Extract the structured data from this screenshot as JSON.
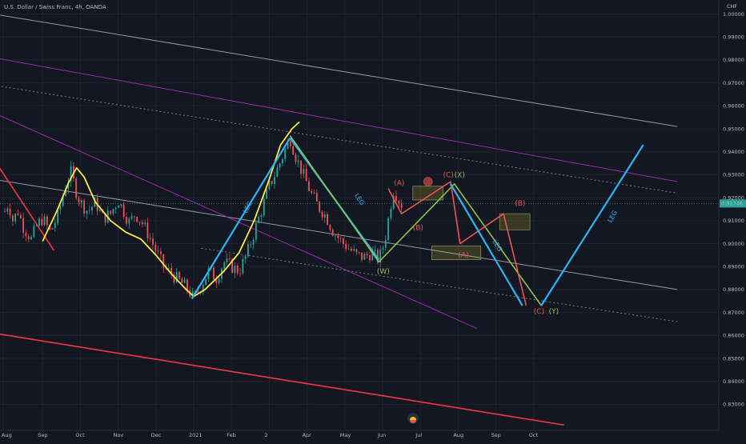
{
  "header": {
    "symbol_line": "U.S. Dollar / Swiss Franc, 4h, OANDA",
    "currency": "CHF"
  },
  "price_badge": {
    "value": "0.91746",
    "color": "#26a69a"
  },
  "colors": {
    "background": "#131722",
    "bull": "#26a69a",
    "bear": "#ef5350",
    "leg_line": "#29b6f6",
    "curve": "#ffeb3b",
    "zigzag_green": "#8bc34a",
    "purple": "#9c27b0",
    "grey": "#9598a1",
    "red_line": "#f23645"
  },
  "chart_data": {
    "type": "line",
    "symbol": "USDCHF",
    "timeframe": "4h",
    "ylim": [
      0.82,
      1.005
    ],
    "y_ticks": [
      "1.00000",
      "0.99000",
      "0.98000",
      "0.97000",
      "0.96000",
      "0.95000",
      "0.94000",
      "0.93000",
      "0.92000",
      "0.91000",
      "0.90000",
      "0.89000",
      "0.88000",
      "0.87000",
      "0.86000",
      "0.85000",
      "0.84000",
      "0.83000"
    ],
    "y_tick_values": [
      1.0,
      0.99,
      0.98,
      0.97,
      0.96,
      0.95,
      0.94,
      0.93,
      0.92,
      0.91,
      0.9,
      0.89,
      0.88,
      0.87,
      0.86,
      0.85,
      0.84,
      0.83
    ],
    "x_ticks": [
      "Aug",
      "Sep",
      "Oct",
      "Nov",
      "Dec",
      "2021",
      "Feb",
      "2",
      "Apr",
      "May",
      "Jun",
      "Jul",
      "Aug",
      "Sep",
      "Oct"
    ],
    "x_tick_months": [
      0,
      1,
      2,
      3,
      4,
      5,
      6,
      7,
      8,
      9,
      10,
      11,
      12,
      13,
      14
    ],
    "last_price": 0.91746,
    "price_series": [
      [
        0.0,
        0.914
      ],
      [
        0.1,
        0.918
      ],
      [
        0.2,
        0.91
      ],
      [
        0.35,
        0.914
      ],
      [
        0.5,
        0.907
      ],
      [
        0.7,
        0.902
      ],
      [
        0.85,
        0.908
      ],
      [
        1.0,
        0.911
      ],
      [
        1.2,
        0.905
      ],
      [
        1.4,
        0.912
      ],
      [
        1.6,
        0.925
      ],
      [
        1.75,
        0.931
      ],
      [
        1.9,
        0.922
      ],
      [
        2.0,
        0.918
      ],
      [
        2.2,
        0.914
      ],
      [
        2.4,
        0.918
      ],
      [
        2.6,
        0.911
      ],
      [
        2.8,
        0.913
      ],
      [
        3.0,
        0.919
      ],
      [
        3.15,
        0.914
      ],
      [
        3.3,
        0.909
      ],
      [
        3.45,
        0.913
      ],
      [
        3.6,
        0.91
      ],
      [
        3.8,
        0.904
      ],
      [
        4.0,
        0.897
      ],
      [
        4.2,
        0.89
      ],
      [
        4.4,
        0.887
      ],
      [
        4.6,
        0.884
      ],
      [
        4.8,
        0.881
      ],
      [
        5.0,
        0.876
      ],
      [
        5.2,
        0.882
      ],
      [
        5.4,
        0.888
      ],
      [
        5.6,
        0.885
      ],
      [
        5.8,
        0.892
      ],
      [
        6.0,
        0.89
      ],
      [
        6.2,
        0.888
      ],
      [
        6.4,
        0.895
      ],
      [
        6.6,
        0.905
      ],
      [
        6.8,
        0.915
      ],
      [
        7.0,
        0.925
      ],
      [
        7.2,
        0.932
      ],
      [
        7.4,
        0.94
      ],
      [
        7.55,
        0.946
      ],
      [
        7.7,
        0.938
      ],
      [
        7.9,
        0.93
      ],
      [
        8.1,
        0.922
      ],
      [
        8.3,
        0.916
      ],
      [
        8.5,
        0.912
      ],
      [
        8.7,
        0.905
      ],
      [
        8.9,
        0.901
      ],
      [
        9.1,
        0.898
      ],
      [
        9.3,
        0.895
      ],
      [
        9.5,
        0.894
      ],
      [
        9.7,
        0.896
      ],
      [
        9.9,
        0.893
      ],
      [
        10.0,
        0.898
      ],
      [
        10.1,
        0.905
      ],
      [
        10.2,
        0.916
      ],
      [
        10.3,
        0.924
      ],
      [
        10.4,
        0.92
      ],
      [
        10.5,
        0.917
      ],
      [
        10.55,
        0.9175
      ]
    ],
    "wave_paths": [
      {
        "name": "blue-leg-1",
        "color": "#29b6f6",
        "points": [
          [
            4.95,
            0.876
          ],
          [
            7.55,
            0.946
          ]
        ]
      },
      {
        "name": "blue-leg-2",
        "color": "#29b6f6",
        "points": [
          [
            7.55,
            0.946
          ],
          [
            9.9,
            0.893
          ]
        ]
      },
      {
        "name": "green-zigzag",
        "color": "#8bc34a",
        "points": [
          [
            7.55,
            0.947
          ],
          [
            9.9,
            0.892
          ],
          [
            11.9,
            0.926
          ],
          [
            14.2,
            0.873
          ]
        ]
      },
      {
        "name": "red-zigzag-1",
        "color": "#ef5350",
        "points": [
          [
            10.15,
            0.924
          ],
          [
            10.5,
            0.913
          ],
          [
            11.8,
            0.927
          ],
          [
            12.05,
            0.9
          ],
          [
            13.2,
            0.913
          ],
          [
            13.8,
            0.873
          ]
        ]
      },
      {
        "name": "cyan-projection",
        "color": "#29b6f6",
        "points": [
          [
            11.8,
            0.926
          ],
          [
            13.7,
            0.873
          ]
        ]
      },
      {
        "name": "cyan-final-leg",
        "color": "#29b6f6",
        "points": [
          [
            14.2,
            0.873
          ],
          [
            16.9,
            0.943
          ]
        ]
      }
    ],
    "curve_path": [
      [
        1.0,
        0.901
      ],
      [
        1.4,
        0.915
      ],
      [
        1.7,
        0.927
      ],
      [
        1.9,
        0.933
      ],
      [
        2.1,
        0.929
      ],
      [
        2.4,
        0.918
      ],
      [
        2.8,
        0.91
      ],
      [
        3.2,
        0.905
      ],
      [
        3.6,
        0.902
      ],
      [
        4.0,
        0.895
      ],
      [
        4.4,
        0.887
      ],
      [
        4.8,
        0.88
      ],
      [
        5.0,
        0.877
      ],
      [
        5.3,
        0.88
      ],
      [
        5.8,
        0.888
      ],
      [
        6.2,
        0.896
      ],
      [
        6.6,
        0.91
      ],
      [
        7.0,
        0.928
      ],
      [
        7.3,
        0.943
      ],
      [
        7.6,
        0.95
      ],
      [
        7.8,
        0.953
      ]
    ],
    "trend_lines": [
      {
        "name": "grey-upper-channel",
        "color": "#9598a1",
        "points": [
          [
            -0.3,
            1.0
          ],
          [
            17.8,
            0.951
          ]
        ]
      },
      {
        "name": "grey-lower-channel",
        "color": "#9598a1",
        "points": [
          [
            -0.3,
            0.928
          ],
          [
            17.8,
            0.88
          ]
        ]
      },
      {
        "name": "purple-upper-line",
        "color": "#9c27b0",
        "points": [
          [
            -0.3,
            0.981
          ],
          [
            17.8,
            0.927
          ]
        ]
      },
      {
        "name": "purple-lower-line",
        "color": "#9c27b0",
        "points": [
          [
            -0.3,
            0.957
          ],
          [
            12.5,
            0.863
          ]
        ]
      },
      {
        "name": "dotted-upper-line",
        "color": "#787b86",
        "points": [
          [
            -0.3,
            0.969
          ],
          [
            17.8,
            0.922
          ]
        ]
      },
      {
        "name": "dotted-lower-line",
        "color": "#787b86",
        "points": [
          [
            5.2,
            0.898
          ],
          [
            17.8,
            0.866
          ]
        ]
      },
      {
        "name": "red-lower-channel",
        "color": "#f23645",
        "points": [
          [
            -0.3,
            0.861
          ],
          [
            14.8,
            0.821
          ]
        ]
      },
      {
        "name": "red-downtrend-left",
        "color": "#f23645",
        "points": [
          [
            -0.3,
            0.937
          ],
          [
            1.3,
            0.897
          ]
        ]
      }
    ],
    "zones": [
      {
        "name": "zone-upper-c",
        "points": [
          [
            10.8,
            0.925
          ],
          [
            11.6,
            0.919
          ]
        ]
      },
      {
        "name": "zone-a",
        "points": [
          [
            11.3,
            0.899
          ],
          [
            12.6,
            0.893
          ]
        ]
      },
      {
        "name": "zone-b",
        "points": [
          [
            13.1,
            0.913
          ],
          [
            13.9,
            0.906
          ]
        ]
      }
    ],
    "circle_marker": {
      "at": [
        11.2,
        0.927
      ]
    },
    "annotations": [
      {
        "text": "(A)",
        "color": "#ef5350",
        "at": [
          10.3,
          0.9255
        ]
      },
      {
        "text": "(B)",
        "color": "#ef5350",
        "at": [
          10.8,
          0.906
        ]
      },
      {
        "text": "(C)",
        "color": "#ef5350",
        "at": [
          11.6,
          0.929
        ]
      },
      {
        "text": "(X)",
        "color": "#8bc34a",
        "at": [
          11.9,
          0.929
        ]
      },
      {
        "text": "(A)",
        "color": "#ef5350",
        "at": [
          12.0,
          0.894
        ]
      },
      {
        "text": "(B)",
        "color": "#ef5350",
        "at": [
          13.5,
          0.9165
        ]
      },
      {
        "text": "(W)",
        "color": "#8bc34a",
        "at": [
          9.85,
          0.887
        ]
      },
      {
        "text": "(C)",
        "color": "#ef5350",
        "at": [
          14.0,
          0.8695
        ]
      },
      {
        "text": "(Y)",
        "color": "#8bc34a",
        "at": [
          14.4,
          0.8695
        ]
      }
    ],
    "leg_labels": [
      {
        "text": "LEG",
        "color": "#29b6f6",
        "at": [
          6.4,
          0.913
        ],
        "rotate": -62
      },
      {
        "text": "LEG",
        "color": "#29b6f6",
        "at": [
          9.25,
          0.921
        ],
        "rotate": 55
      },
      {
        "text": "LEG",
        "color": "#29b6f6",
        "at": [
          12.9,
          0.901
        ],
        "rotate": 58
      },
      {
        "text": "LEG",
        "color": "#29b6f6",
        "at": [
          16.05,
          0.909
        ],
        "rotate": -60
      }
    ]
  }
}
